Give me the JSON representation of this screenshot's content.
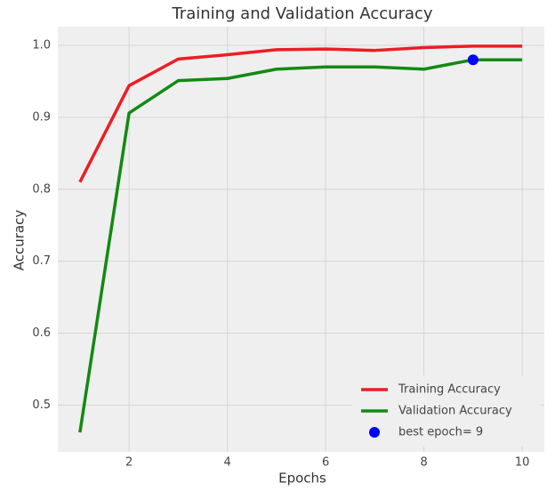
{
  "chart_data": {
    "type": "line",
    "title": "Training and Validation Accuracy",
    "x_label": "Epochs",
    "y_label": "Accuracy",
    "x": [
      1,
      2,
      3,
      4,
      5,
      6,
      7,
      8,
      9,
      10
    ],
    "series": [
      {
        "name": "Training Accuracy",
        "color": "#ee1c25",
        "values": [
          0.81,
          0.944,
          0.981,
          0.987,
          0.994,
          0.995,
          0.993,
          0.997,
          0.999,
          0.999
        ]
      },
      {
        "name": "Validation Accuracy",
        "color": "#128a12",
        "values": [
          0.462,
          0.906,
          0.951,
          0.954,
          0.967,
          0.97,
          0.97,
          0.967,
          0.98,
          0.98
        ]
      },
      {
        "name": "best epoch= 9",
        "color": "#0000ff",
        "style": "scatter",
        "x": [
          9
        ],
        "values": [
          0.98
        ]
      }
    ],
    "xlim": [
      0.55,
      10.45
    ],
    "xticks": [
      2,
      4,
      6,
      8,
      10
    ],
    "ylim": [
      0.435,
      1.026
    ],
    "yticks": [
      0.5,
      0.6,
      0.7,
      0.8,
      0.9,
      {
        "value": 1,
        "label": "1.0"
      }
    ],
    "grid": true,
    "legend": "lower right"
  }
}
